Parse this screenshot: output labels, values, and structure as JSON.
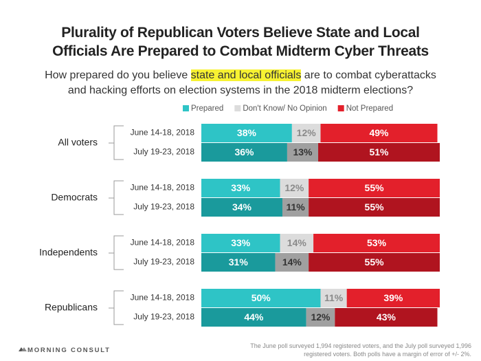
{
  "chart_data": {
    "type": "stacked-bar",
    "title": [
      "Plurality of Republican Voters Believe State and Local",
      "Officials Are Prepared to Combat Midterm Cyber Threats"
    ],
    "subtitle": {
      "before": "How prepared do you believe ",
      "highlight": "state and local officials",
      "after": [
        " are to combat cyberattacks",
        "and hacking efforts on election systems in the 2018 midterm elections?"
      ]
    },
    "groups": [
      "All voters",
      "Democrats",
      "Independents",
      "Republicans"
    ],
    "categories": [
      "June 14-18, 2018",
      "July 19-23, 2018",
      "June 14-18, 2018",
      "July 19-23, 2018",
      "June 14-18, 2018",
      "July 19-23, 2018",
      "June 14-18, 2018",
      "July 19-23, 2018"
    ],
    "xlim": [
      0,
      100
    ],
    "series": [
      {
        "name": "Prepared",
        "colors": [
          "#2ec4c6",
          "#1a9a9c"
        ],
        "label_colors": [
          "#ffffff",
          "#ffffff"
        ],
        "values": [
          38,
          36,
          33,
          34,
          33,
          31,
          50,
          44
        ],
        "value_labels": [
          "38%",
          "36%",
          "33%",
          "34%",
          "33%",
          "31%",
          "50%",
          "44%"
        ]
      },
      {
        "name": "Don't Know/ No Opinion",
        "colors": [
          "#dcdcdc",
          "#a0a0a0"
        ],
        "label_colors": [
          "#8a8a8a",
          "#333333"
        ],
        "values": [
          12,
          13,
          12,
          11,
          14,
          14,
          11,
          12
        ],
        "value_labels": [
          "12%",
          "13%",
          "12%",
          "11%",
          "14%",
          "14%",
          "11%",
          "12%"
        ]
      },
      {
        "name": "Not Prepared",
        "colors": [
          "#e3202b",
          "#b0141f"
        ],
        "label_colors": [
          "#ffffff",
          "#ffffff"
        ],
        "values": [
          49,
          51,
          55,
          55,
          53,
          55,
          39,
          43
        ],
        "value_labels": [
          "49%",
          "51%",
          "55%",
          "55%",
          "53%",
          "55%",
          "39%",
          "43%"
        ]
      }
    ],
    "source": "MORNING CONSULT",
    "note": "The June poll surveyed  1,994 registered voters, and the July poll surveyed 1,996 registered voters. Both polls have a margin of error of +/- 2%."
  }
}
